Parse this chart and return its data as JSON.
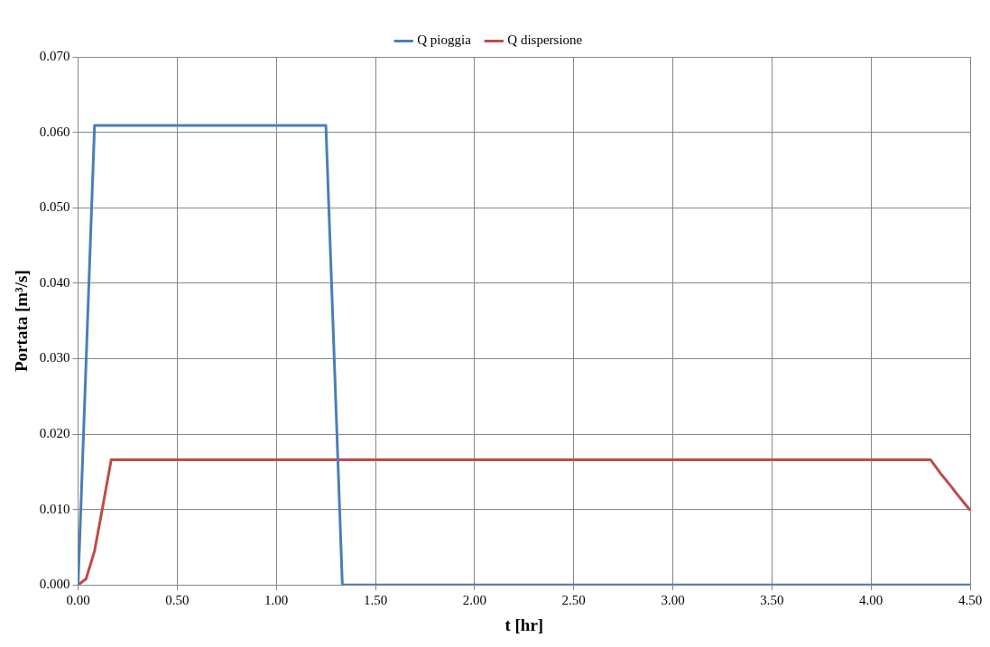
{
  "chart_data": {
    "type": "line",
    "xlabel": "t [hr]",
    "ylabel": "Portata [m³/s]",
    "xlim": [
      0,
      4.5
    ],
    "ylim": [
      0,
      0.07
    ],
    "xticks": [
      {
        "value": 0,
        "label": "0.00"
      },
      {
        "value": 0.5,
        "label": "0.50"
      },
      {
        "value": 1,
        "label": "1.00"
      },
      {
        "value": 1.5,
        "label": "1.50"
      },
      {
        "value": 2,
        "label": "2.00"
      },
      {
        "value": 2.5,
        "label": "2.50"
      },
      {
        "value": 3,
        "label": "3.00"
      },
      {
        "value": 3.5,
        "label": "3.50"
      },
      {
        "value": 4,
        "label": "4.00"
      },
      {
        "value": 4.5,
        "label": "4.50"
      }
    ],
    "yticks": [
      {
        "value": 0,
        "label": "0.000"
      },
      {
        "value": 0.01,
        "label": "0.010"
      },
      {
        "value": 0.02,
        "label": "0.020"
      },
      {
        "value": 0.03,
        "label": "0.030"
      },
      {
        "value": 0.04,
        "label": "0.040"
      },
      {
        "value": 0.05,
        "label": "0.050"
      },
      {
        "value": 0.06,
        "label": "0.060"
      },
      {
        "value": 0.07,
        "label": "0.070"
      }
    ],
    "grid": true,
    "legend": "top",
    "marker": "none",
    "line_style": "solid",
    "series": [
      {
        "name": "Q pioggia",
        "color": "#4a7ebb",
        "x": [
          0,
          0.083,
          1.25,
          1.333,
          4.5
        ],
        "values": [
          0,
          0.0609,
          0.0609,
          0,
          0
        ]
      },
      {
        "name": "Q dispersione",
        "color": "#be4b48",
        "x": [
          0,
          0.04,
          0.083,
          0.125,
          0.167,
          4.3,
          4.35,
          4.4,
          4.45,
          4.5
        ],
        "values": [
          0,
          0.0008,
          0.0045,
          0.0105,
          0.0166,
          0.0166,
          0.0148,
          0.0132,
          0.0115,
          0.0099
        ]
      }
    ]
  }
}
